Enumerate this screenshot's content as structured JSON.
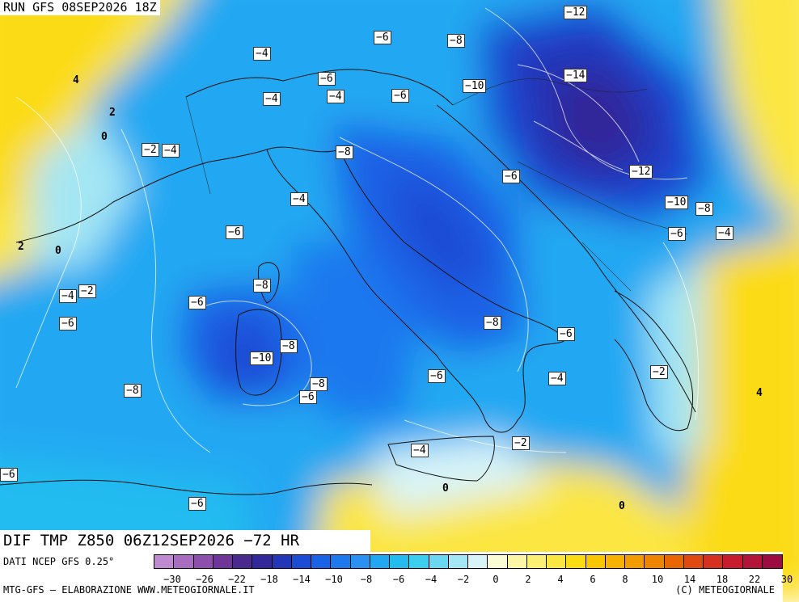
{
  "header": {
    "run_label": "RUN GFS 08SEP2026 18Z"
  },
  "map": {
    "variable_label": "DIF TMP Z850 06Z12SEP2026 −72 HR",
    "labels": [
      {
        "text": "−12",
        "boxed": true
      },
      {
        "text": "−6",
        "boxed": true
      },
      {
        "text": "−8",
        "boxed": true
      },
      {
        "text": "−4",
        "boxed": true
      },
      {
        "text": "4",
        "boxed": false
      },
      {
        "text": "−6",
        "boxed": true
      },
      {
        "text": "−10",
        "boxed": true
      },
      {
        "text": "−14",
        "boxed": true
      },
      {
        "text": "2",
        "boxed": false
      },
      {
        "text": "−4",
        "boxed": true
      },
      {
        "text": "−4",
        "boxed": true
      },
      {
        "text": "−6",
        "boxed": true
      },
      {
        "text": "0",
        "boxed": false
      },
      {
        "text": "−2",
        "boxed": true
      },
      {
        "text": "−4",
        "boxed": true
      },
      {
        "text": "−8",
        "boxed": true
      },
      {
        "text": "−6",
        "boxed": true
      },
      {
        "text": "−12",
        "boxed": true
      },
      {
        "text": "−4",
        "boxed": true
      },
      {
        "text": "−10",
        "boxed": true
      },
      {
        "text": "−8",
        "boxed": true
      },
      {
        "text": "−6",
        "boxed": true
      },
      {
        "text": "−6",
        "boxed": true
      },
      {
        "text": "−4",
        "boxed": true
      },
      {
        "text": "2",
        "boxed": false
      },
      {
        "text": "0",
        "boxed": false
      },
      {
        "text": "−8",
        "boxed": true
      },
      {
        "text": "−4",
        "boxed": true
      },
      {
        "text": "−2",
        "boxed": true
      },
      {
        "text": "−6",
        "boxed": true
      },
      {
        "text": "−6",
        "boxed": true
      },
      {
        "text": "−8",
        "boxed": true
      },
      {
        "text": "−6",
        "boxed": true
      },
      {
        "text": "−10",
        "boxed": true
      },
      {
        "text": "−8",
        "boxed": true
      },
      {
        "text": "−6",
        "boxed": true
      },
      {
        "text": "−8",
        "boxed": true
      },
      {
        "text": "−4",
        "boxed": true
      },
      {
        "text": "−2",
        "boxed": true
      },
      {
        "text": "4",
        "boxed": false
      },
      {
        "text": "−8",
        "boxed": true
      },
      {
        "text": "−6",
        "boxed": true
      },
      {
        "text": "−4",
        "boxed": true
      },
      {
        "text": "−2",
        "boxed": true
      },
      {
        "text": "0",
        "boxed": false
      },
      {
        "text": "−6",
        "boxed": true
      },
      {
        "text": "0",
        "boxed": false
      },
      {
        "text": "−6",
        "boxed": true
      }
    ]
  },
  "legend": {
    "colors": [
      "#c08ad0",
      "#a86cc0",
      "#8c50ac",
      "#6f3598",
      "#4a2a8e",
      "#33289a",
      "#2236b8",
      "#1c4cd4",
      "#1a62e6",
      "#1e78ee",
      "#2a90f2",
      "#22a8f2",
      "#24bcf0",
      "#3ccdef",
      "#6ad8f0",
      "#a4e6f4",
      "#d8f4f8",
      "#fafcd4",
      "#fbf6a6",
      "#fbef74",
      "#fbe642",
      "#fbdb12",
      "#f9c600",
      "#f7b200",
      "#f39c00",
      "#ef8400",
      "#e96600",
      "#e04a10",
      "#d63020",
      "#c81c2c",
      "#b4143a",
      "#9c0c40"
    ],
    "ticks": [
      "−30",
      "−26",
      "−22",
      "−18",
      "−14",
      "−10",
      "−8",
      "−6",
      "−4",
      "−2",
      "0",
      "2",
      "4",
      "6",
      "8",
      "10",
      "14",
      "18",
      "22",
      "30"
    ]
  },
  "footer": {
    "data_source": "DATI NCEP GFS 0.25°",
    "left": "MTG-GFS — ELABORAZIONE WWW.METEOGIORNALE.IT",
    "right": "(C) METEOGIORNALE"
  }
}
